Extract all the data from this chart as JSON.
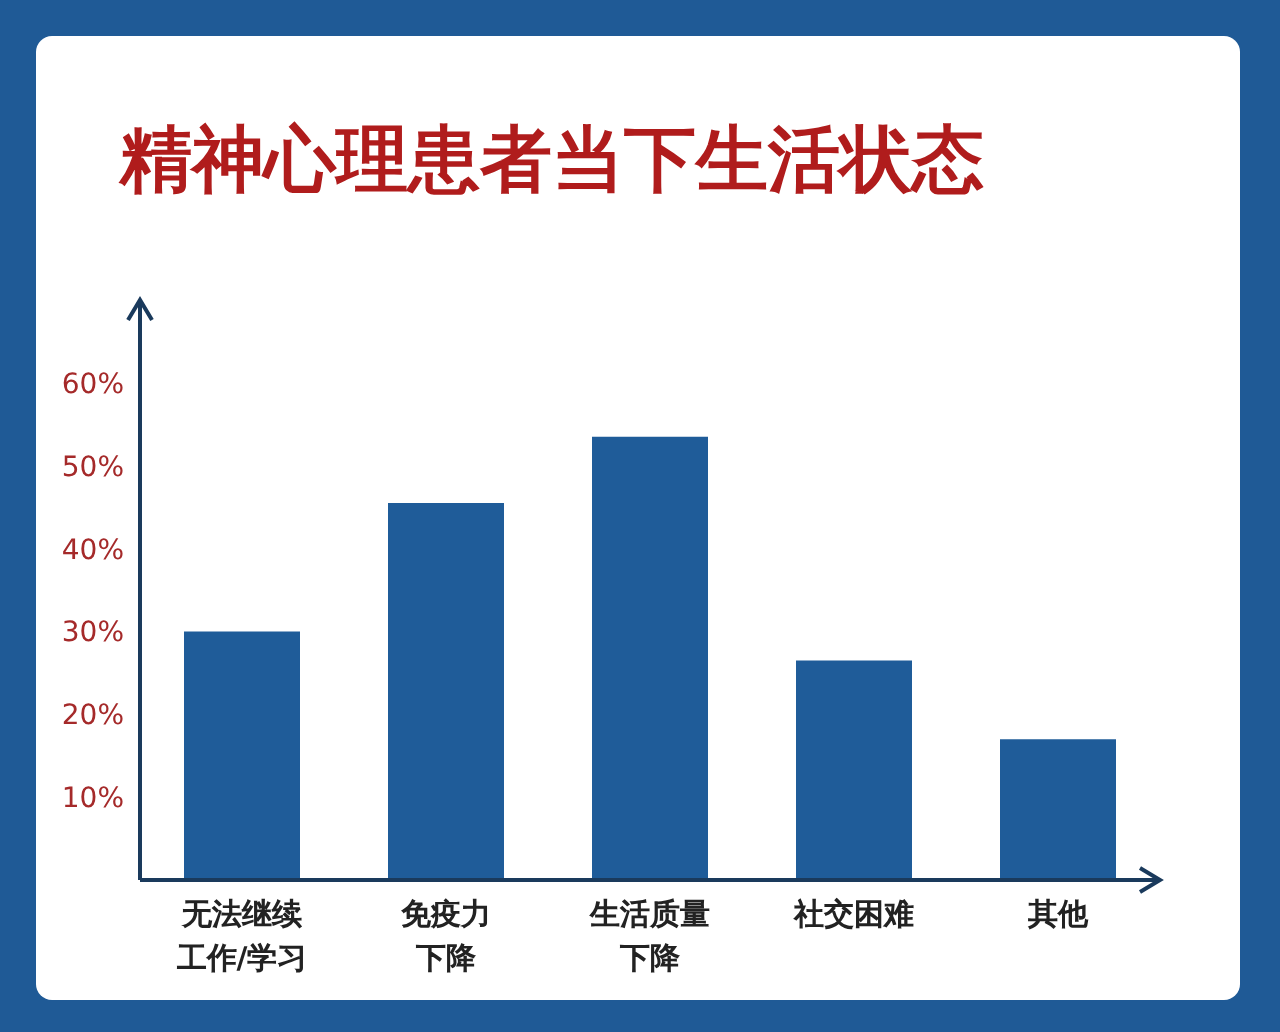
{
  "chart_data": {
    "type": "bar",
    "title": "精神心理患者当下生活状态",
    "categories": [
      "无法继续工作/学习",
      "免疫力下降",
      "生活质量下降",
      "社交困难",
      "其他"
    ],
    "values": [
      30,
      45.5,
      53.5,
      26.5,
      17
    ],
    "color": "#1f5c99",
    "ylim": [
      0,
      70
    ],
    "yticks": [
      {
        "value": 10,
        "label": "10%"
      },
      {
        "value": 20,
        "label": "20%"
      },
      {
        "value": 30,
        "label": "30%"
      },
      {
        "value": 40,
        "label": "40%"
      },
      {
        "value": 50,
        "label": "50%"
      },
      {
        "value": 60,
        "label": "60%"
      }
    ],
    "grid": false
  }
}
